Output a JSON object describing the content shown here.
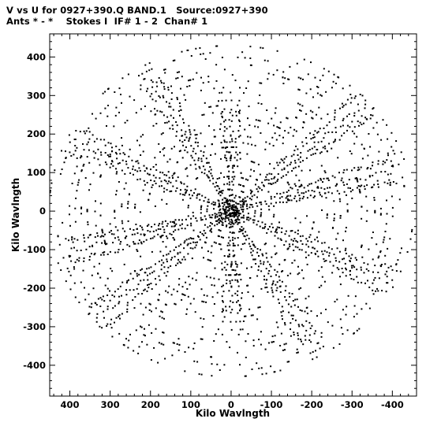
{
  "header": {
    "line1": "V vs U for 0927+390.Q BAND.1   Source:0927+390",
    "line2": "Ants * - *    Stokes I  IF# 1 - 2  Chan# 1"
  },
  "chart_data": {
    "type": "scatter",
    "title": "V vs U for 0927+390.Q BAND.1   Source:0927+390",
    "subtitle": "Ants * - *    Stokes I  IF# 1 - 2  Chan# 1",
    "xlabel": "Kilo Wavlngth",
    "ylabel": "Kilo Wavlngth",
    "xlim": [
      450,
      -460
    ],
    "ylim": [
      -480,
      460
    ],
    "x_reversed": true,
    "x_ticks": [
      400,
      300,
      200,
      100,
      0,
      -100,
      -200,
      -300,
      -400
    ],
    "x_tick_labels": [
      "400",
      "300",
      "200",
      "100",
      "0",
      "-100",
      "-200",
      "-300",
      "-400"
    ],
    "y_ticks": [
      400,
      300,
      200,
      100,
      0,
      -100,
      -200,
      -300,
      -400
    ],
    "y_tick_labels": [
      "400",
      "300",
      "200",
      "100",
      "0",
      "-100",
      "-200",
      "-300",
      "-400"
    ],
    "grid": false,
    "marker": "dot",
    "marker_color": "#000000",
    "symmetry": "point-symmetric (each (u,v) also plotted at (-u,-v))",
    "arms": [
      {
        "angle_deg": 90,
        "radius_max": 270
      },
      {
        "angle_deg": 25,
        "radius_max": 440
      },
      {
        "angle_deg": 140,
        "radius_max": 450
      },
      {
        "angle_deg": 165,
        "radius_max": 420
      },
      {
        "angle_deg": 60,
        "radius_max": 400
      }
    ],
    "notes": "Dense radial tracks of Earth-rotation (u,v) samples; ~5 principal arm directions plus their conjugates, with a dense clump within ~40 kλ of the origin."
  }
}
